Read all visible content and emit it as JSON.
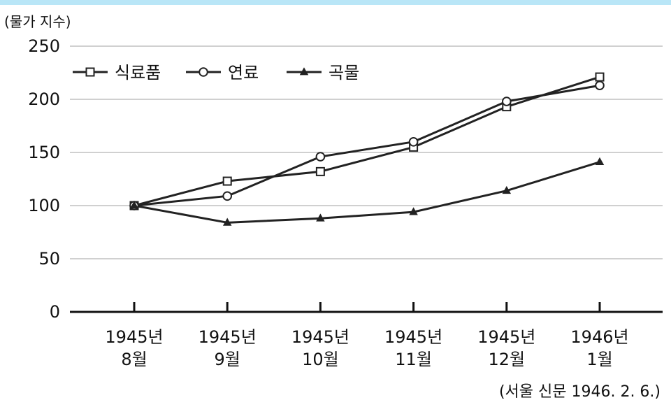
{
  "colors": {
    "top_bar": "#b9e6f7",
    "line": "#222222",
    "grid": "#b5b5b5",
    "axis": "#111111",
    "marker_fill": "#ffffff"
  },
  "chart_data": {
    "type": "line",
    "title": "",
    "ylabel": "(물가 지수)",
    "xlabel": "",
    "ylim": [
      0,
      250
    ],
    "yticks": [
      0,
      50,
      100,
      150,
      200,
      250
    ],
    "grid": true,
    "legend_position": "top-left",
    "categories": [
      [
        "1945년",
        "8월"
      ],
      [
        "1945년",
        "9월"
      ],
      [
        "1945년",
        "10월"
      ],
      [
        "1945년",
        "11월"
      ],
      [
        "1945년",
        "12월"
      ],
      [
        "1946년",
        "1월"
      ]
    ],
    "series": [
      {
        "name": "식료품",
        "marker": "square",
        "values": [
          100,
          123,
          132,
          155,
          193,
          221
        ]
      },
      {
        "name": "연료",
        "marker": "circle",
        "values": [
          100,
          109,
          146,
          160,
          198,
          213
        ]
      },
      {
        "name": "곡물",
        "marker": "triangle",
        "values": [
          100,
          84,
          88,
          94,
          114,
          141
        ]
      }
    ],
    "source": "(서울 신문 1946. 2. 6.)"
  }
}
